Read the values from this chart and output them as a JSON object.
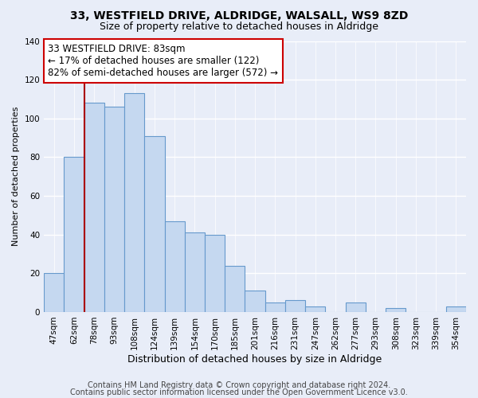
{
  "title": "33, WESTFIELD DRIVE, ALDRIDGE, WALSALL, WS9 8ZD",
  "subtitle": "Size of property relative to detached houses in Aldridge",
  "xlabel": "Distribution of detached houses by size in Aldridge",
  "ylabel": "Number of detached properties",
  "bar_labels": [
    "47sqm",
    "62sqm",
    "78sqm",
    "93sqm",
    "108sqm",
    "124sqm",
    "139sqm",
    "154sqm",
    "170sqm",
    "185sqm",
    "201sqm",
    "216sqm",
    "231sqm",
    "247sqm",
    "262sqm",
    "277sqm",
    "293sqm",
    "308sqm",
    "323sqm",
    "339sqm",
    "354sqm"
  ],
  "bar_values": [
    20,
    80,
    108,
    106,
    113,
    91,
    47,
    41,
    40,
    24,
    11,
    5,
    6,
    3,
    0,
    5,
    0,
    2,
    0,
    0,
    3
  ],
  "bar_color": "#c5d8f0",
  "bar_edge_color": "#6699cc",
  "vline_color": "#aa0000",
  "vline_index": 2,
  "ylim": [
    0,
    140
  ],
  "yticks": [
    0,
    20,
    40,
    60,
    80,
    100,
    120,
    140
  ],
  "annotation_title": "33 WESTFIELD DRIVE: 83sqm",
  "annotation_line1": "← 17% of detached houses are smaller (122)",
  "annotation_line2": "82% of semi-detached houses are larger (572) →",
  "annotation_box_facecolor": "#ffffff",
  "annotation_box_edgecolor": "#cc0000",
  "footer_line1": "Contains HM Land Registry data © Crown copyright and database right 2024.",
  "footer_line2": "Contains public sector information licensed under the Open Government Licence v3.0.",
  "background_color": "#e8edf8",
  "grid_color": "#ffffff",
  "title_fontsize": 10,
  "subtitle_fontsize": 9,
  "xlabel_fontsize": 9,
  "ylabel_fontsize": 8,
  "tick_fontsize": 7.5,
  "annotation_fontsize": 8.5,
  "footer_fontsize": 7
}
